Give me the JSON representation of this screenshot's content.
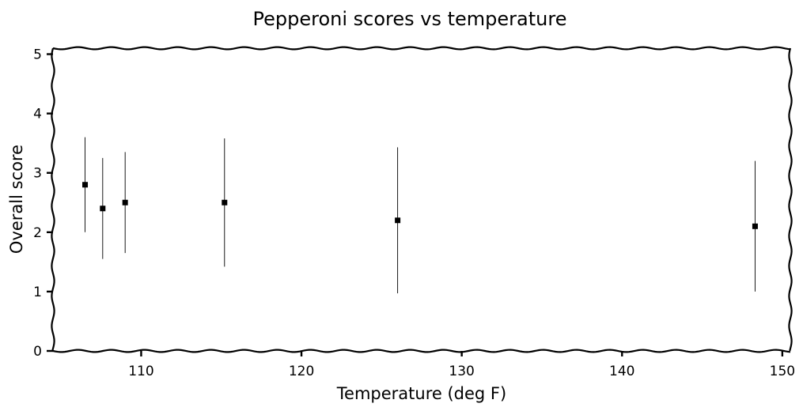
{
  "colors": {
    "background": "#ffffff",
    "axes": "#000000",
    "marker": "#000000",
    "errorbar": "#000000"
  },
  "chart_data": {
    "type": "scatter",
    "title": "Pepperoni scores vs temperature",
    "xlabel": "Temperature (deg F)",
    "ylabel": "Overall score",
    "xlim": [
      104.5,
      150.5
    ],
    "ylim": [
      0,
      5.1
    ],
    "xticks": [
      110,
      120,
      130,
      140,
      150
    ],
    "xtick_labels": [
      "110",
      "120",
      "130",
      "140",
      "150"
    ],
    "yticks": [
      0,
      1,
      2,
      3,
      4,
      5
    ],
    "ytick_labels": [
      "0",
      "1",
      "2",
      "3",
      "4",
      "5"
    ],
    "grid": false,
    "marker": "square",
    "points": [
      {
        "x": 106.5,
        "y": 2.8,
        "y_low": 2.0,
        "y_high": 3.6
      },
      {
        "x": 107.6,
        "y": 2.4,
        "y_low": 1.55,
        "y_high": 3.25
      },
      {
        "x": 109.0,
        "y": 2.5,
        "y_low": 1.65,
        "y_high": 3.35
      },
      {
        "x": 115.2,
        "y": 2.5,
        "y_low": 1.42,
        "y_high": 3.58
      },
      {
        "x": 126.0,
        "y": 2.2,
        "y_low": 0.97,
        "y_high": 3.43
      },
      {
        "x": 148.3,
        "y": 2.1,
        "y_low": 1.0,
        "y_high": 3.2
      }
    ]
  }
}
